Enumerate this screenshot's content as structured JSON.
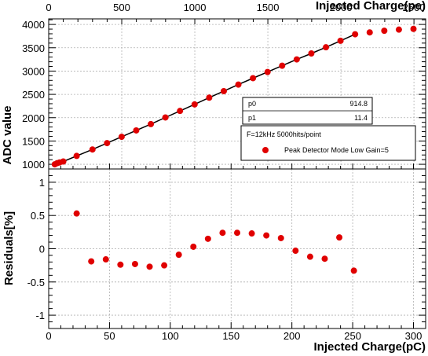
{
  "colors": {
    "marker": "#e00000",
    "fit_line": "#000000",
    "grid": "#b0b0b0",
    "frame": "#000000"
  },
  "chart_data": [
    {
      "type": "scatter",
      "panel": "top",
      "xlabel_top": "Injected Charge(pe)",
      "ylabel": "ADC value",
      "x_unit_bottom": "pC",
      "xlim_pC": [
        0,
        310
      ],
      "xlim_pe": [
        0,
        2580
      ],
      "ylim": [
        900,
        4120
      ],
      "grid": true,
      "top_ticks": [
        "0",
        "500",
        "1000",
        "1500",
        "2000",
        "2500"
      ],
      "top_tick_values": [
        0,
        500,
        1000,
        1500,
        2000,
        2500
      ],
      "y_ticks": [
        "1000",
        "1500",
        "2000",
        "2500",
        "3000",
        "3500",
        "4000"
      ],
      "y_tick_values": [
        1000,
        1500,
        2000,
        2500,
        3000,
        3500,
        4000
      ],
      "series": [
        {
          "marker": "circle",
          "x": [
            5,
            7,
            9,
            12,
            23,
            36,
            48,
            60,
            72,
            84,
            96,
            108,
            120,
            132,
            144,
            156,
            168,
            180,
            192,
            204,
            216,
            228,
            240,
            252,
            264,
            276,
            288,
            300
          ],
          "y": [
            1000,
            1025,
            1040,
            1060,
            1180,
            1318,
            1455,
            1590,
            1727,
            1862,
            2005,
            2145,
            2285,
            2430,
            2570,
            2710,
            2848,
            2980,
            3115,
            3250,
            3378,
            3510,
            3650,
            3790,
            3830,
            3865,
            3890,
            3905
          ]
        }
      ],
      "fit": {
        "p0_label": "p0",
        "p0": "914.8",
        "p1_label": "p1",
        "p1": "11.4",
        "x_range": [
          5,
          252
        ]
      },
      "legend": {
        "header": "F=12kHz 5000hits/point",
        "entry": "Peak Detector Mode Low Gain=5",
        "placement": "lower-right"
      }
    },
    {
      "type": "scatter",
      "panel": "bottom",
      "xlabel": "Injected Charge(pC)",
      "ylabel": "Residuals[%]",
      "xlim": [
        0,
        310
      ],
      "ylim": [
        -1.2,
        1.2
      ],
      "grid": true,
      "x_ticks": [
        "0",
        "50",
        "100",
        "150",
        "200",
        "250",
        "300"
      ],
      "x_tick_values": [
        0,
        50,
        100,
        150,
        200,
        250,
        300
      ],
      "y_ticks": [
        "1",
        "0.5",
        "0",
        "-0.5",
        "-1"
      ],
      "y_tick_values": [
        1,
        0.5,
        0,
        -0.5,
        -1
      ],
      "series": [
        {
          "marker": "circle",
          "x": [
            23,
            35,
            47,
            59,
            71,
            83,
            95,
            107,
            119,
            131,
            143,
            155,
            167,
            179,
            191,
            203,
            215,
            227,
            239,
            251
          ],
          "y": [
            0.53,
            -0.19,
            -0.16,
            -0.24,
            -0.23,
            -0.27,
            -0.25,
            -0.09,
            0.03,
            0.15,
            0.24,
            0.24,
            0.23,
            0.2,
            0.16,
            -0.03,
            -0.12,
            -0.15,
            0.17,
            -0.33
          ]
        }
      ]
    }
  ]
}
